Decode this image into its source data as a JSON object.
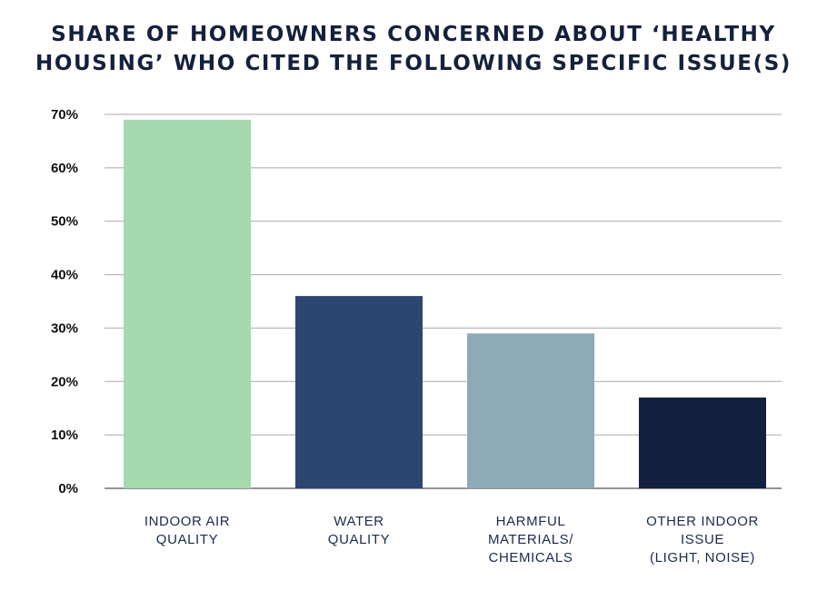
{
  "chart_data": {
    "type": "bar",
    "title_lines": [
      "SHARE OF HOMEOWNERS CONCERNED ABOUT ‘HEALTHY",
      "HOUSING’ WHO CITED THE FOLLOWING SPECIFIC ISSUE(S)"
    ],
    "categories": [
      [
        "INDOOR AIR",
        "QUALITY"
      ],
      [
        "WATER",
        "QUALITY"
      ],
      [
        "HARMFUL",
        "MATERIALS/",
        "CHEMICALS"
      ],
      [
        "OTHER INDOOR",
        "ISSUE",
        "(LIGHT, NOISE)"
      ]
    ],
    "values": [
      69,
      36,
      29,
      17
    ],
    "colors": [
      "#a6d9ae",
      "#2b4670",
      "#8eabb5",
      "#121f3f"
    ],
    "ylim": [
      0,
      70
    ],
    "yticks": [
      "0%",
      "10%",
      "20%",
      "30%",
      "40%",
      "50%",
      "60%",
      "70%"
    ],
    "grid": true,
    "xlabel": "",
    "ylabel": ""
  }
}
